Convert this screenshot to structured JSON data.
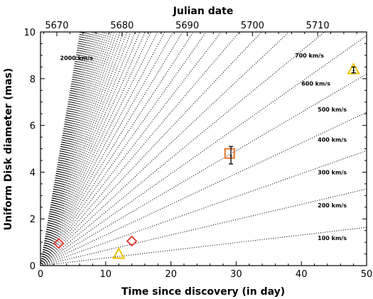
{
  "chart_data": {
    "type": "scatter",
    "xlabel": "Time since discovery (in day)",
    "ylabel": "Uniform Disk diameter (mas)",
    "top_xlabel": "Julian date",
    "xlim": [
      0,
      50
    ],
    "ylim": [
      0,
      10
    ],
    "x_ticks": [
      "0",
      "10",
      "20",
      "30",
      "40",
      "50"
    ],
    "y_ticks": [
      "0",
      "2",
      "4",
      "6",
      "8",
      "10"
    ],
    "top_x_ticks": [
      "5670",
      "5680",
      "5690",
      "5700",
      "5710"
    ],
    "top_x_tick_values": [
      2.5,
      12.5,
      22.5,
      32.5,
      42.5
    ],
    "expansion_lines": {
      "style": "dotted",
      "velocities_kms": [
        100,
        200,
        300,
        400,
        500,
        600,
        700,
        800,
        900,
        1000,
        1100,
        1200,
        1300,
        1400,
        1500,
        1600,
        1700,
        1800,
        1900,
        2000,
        2100,
        2200,
        2300,
        2400,
        2500,
        2600,
        2700,
        2800,
        2900,
        3000,
        3100,
        3200,
        3300,
        3400,
        3500,
        3600,
        3700,
        3800,
        3900,
        4000,
        4100,
        4200,
        4300,
        4400,
        4500,
        4600,
        4700,
        4800,
        4900,
        5000
      ],
      "slope_mas_per_day_per_100kms": 0.0328
    },
    "line_labels": [
      {
        "text": "2000 km/s",
        "x": 3.0,
        "y": 8.8
      },
      {
        "text": "700 km/s",
        "x": 39.0,
        "y": 8.9
      },
      {
        "text": "600 km/s",
        "x": 40.0,
        "y": 7.7
      },
      {
        "text": "500 km/s",
        "x": 42.5,
        "y": 6.6
      },
      {
        "text": "400 km/s",
        "x": 42.5,
        "y": 5.3
      },
      {
        "text": "300 km/s",
        "x": 42.5,
        "y": 3.9
      },
      {
        "text": "200 km/s",
        "x": 42.5,
        "y": 2.5
      },
      {
        "text": "100 km/s",
        "x": 42.5,
        "y": 1.1
      }
    ],
    "series": [
      {
        "marker": "diamond",
        "color": "#e8322a",
        "points": [
          {
            "x": 2.8,
            "y": 0.95
          },
          {
            "x": 14.0,
            "y": 1.05
          }
        ]
      },
      {
        "marker": "triangle",
        "color": "#f2c200",
        "points": [
          {
            "x": 12.0,
            "y": 0.5
          },
          {
            "x": 48.0,
            "y": 8.4
          }
        ]
      },
      {
        "marker": "square",
        "color": "#e8722a",
        "points": [
          {
            "x": 29.0,
            "y": 4.8
          }
        ]
      }
    ],
    "error_bars": [
      {
        "x": 29.2,
        "y": 4.7,
        "ylow": 4.35,
        "yhigh": 5.1
      },
      {
        "x": 48.0,
        "y": 8.35,
        "ylow": 8.25,
        "yhigh": 8.5
      }
    ]
  }
}
